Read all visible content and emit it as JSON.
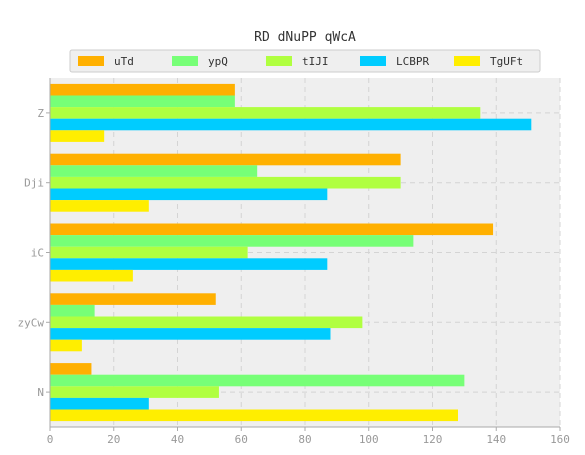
{
  "chart_data": {
    "type": "bar",
    "orientation": "horizontal",
    "title": "RD dNuPP qWcA",
    "xlabel": "",
    "ylabel": "",
    "xlim": [
      0,
      160
    ],
    "xticks": [
      0,
      20,
      40,
      60,
      80,
      100,
      120,
      140,
      160
    ],
    "categories": [
      "Z",
      "Dji",
      "iC",
      "zyCw",
      "N"
    ],
    "grid": true,
    "legend_position": "top",
    "series": [
      {
        "name": "uTd",
        "color": "#ffb000",
        "values": [
          58,
          110,
          139,
          52,
          13
        ]
      },
      {
        "name": "ypQ",
        "color": "#77ff77",
        "values": [
          58,
          65,
          114,
          14,
          130
        ]
      },
      {
        "name": "tIJI",
        "color": "#b0ff40",
        "values": [
          135,
          110,
          62,
          98,
          53
        ]
      },
      {
        "name": "LCBPR",
        "color": "#00ccff",
        "values": [
          151,
          87,
          87,
          88,
          31
        ]
      },
      {
        "name": "TgUFt",
        "color": "#ffee00",
        "values": [
          17,
          31,
          26,
          10,
          128
        ]
      }
    ]
  }
}
